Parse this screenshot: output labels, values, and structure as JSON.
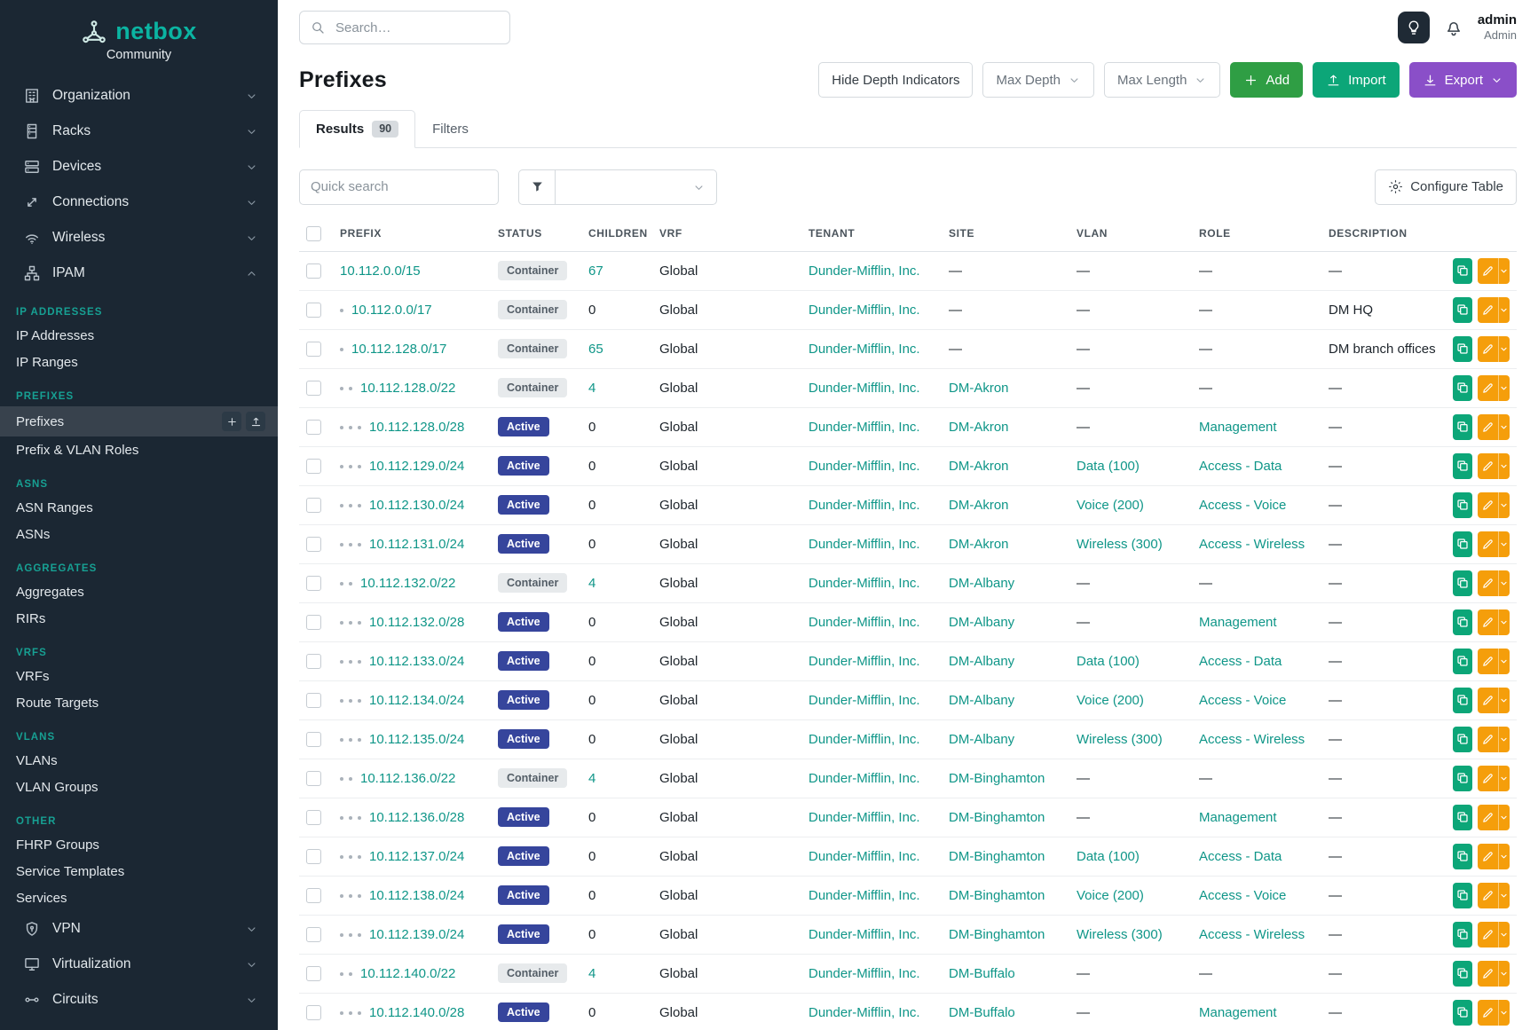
{
  "brand": {
    "name": "netbox",
    "tagline": "Community"
  },
  "topbar": {
    "search_placeholder": "Search…",
    "user_name": "admin",
    "user_role": "Admin"
  },
  "sidebar": {
    "top_items": [
      {
        "label": "Organization",
        "icon": "organization-icon"
      },
      {
        "label": "Racks",
        "icon": "racks-icon"
      },
      {
        "label": "Devices",
        "icon": "devices-icon"
      },
      {
        "label": "Connections",
        "icon": "connections-icon"
      },
      {
        "label": "Wireless",
        "icon": "wireless-icon"
      },
      {
        "label": "IPAM",
        "icon": "ipam-icon",
        "expanded": true
      }
    ],
    "sections": [
      {
        "heading": "IP ADDRESSES",
        "items": [
          {
            "label": "IP Addresses"
          },
          {
            "label": "IP Ranges"
          }
        ]
      },
      {
        "heading": "PREFIXES",
        "items": [
          {
            "label": "Prefixes",
            "active": true
          },
          {
            "label": "Prefix & VLAN Roles"
          }
        ]
      },
      {
        "heading": "ASNS",
        "items": [
          {
            "label": "ASN Ranges"
          },
          {
            "label": "ASNs"
          }
        ]
      },
      {
        "heading": "AGGREGATES",
        "items": [
          {
            "label": "Aggregates"
          },
          {
            "label": "RIRs"
          }
        ]
      },
      {
        "heading": "VRFS",
        "items": [
          {
            "label": "VRFs"
          },
          {
            "label": "Route Targets"
          }
        ]
      },
      {
        "heading": "VLANS",
        "items": [
          {
            "label": "VLANs"
          },
          {
            "label": "VLAN Groups"
          }
        ]
      },
      {
        "heading": "OTHER",
        "items": [
          {
            "label": "FHRP Groups"
          },
          {
            "label": "Service Templates"
          },
          {
            "label": "Services"
          }
        ]
      }
    ],
    "bottom_items": [
      {
        "label": "VPN",
        "icon": "vpn-icon"
      },
      {
        "label": "Virtualization",
        "icon": "virtualization-icon"
      },
      {
        "label": "Circuits",
        "icon": "circuits-icon"
      }
    ]
  },
  "page": {
    "title": "Prefixes",
    "toolbar": {
      "hide_depth": "Hide Depth Indicators",
      "max_depth": "Max Depth",
      "max_length": "Max Length",
      "add": "Add",
      "import": "Import",
      "export": "Export"
    },
    "tabs": [
      {
        "label": "Results",
        "badge": "90"
      },
      {
        "label": "Filters"
      }
    ],
    "quick_search_placeholder": "Quick search",
    "configure_table": "Configure Table"
  },
  "table": {
    "columns": [
      "PREFIX",
      "STATUS",
      "CHILDREN",
      "VRF",
      "TENANT",
      "SITE",
      "VLAN",
      "ROLE",
      "DESCRIPTION"
    ],
    "empty": "—",
    "rows": [
      {
        "depth": 0,
        "prefix": "10.112.0.0/15",
        "status": "Container",
        "variant": "container",
        "children": "67",
        "children_link": true,
        "vrf": "Global",
        "tenant": "Dunder-Mifflin, Inc.",
        "site": "",
        "vlan": "",
        "role": "",
        "description": ""
      },
      {
        "depth": 1,
        "prefix": "10.112.0.0/17",
        "status": "Container",
        "variant": "container",
        "children": "0",
        "children_link": false,
        "vrf": "Global",
        "tenant": "Dunder-Mifflin, Inc.",
        "site": "",
        "vlan": "",
        "role": "",
        "description": "DM HQ"
      },
      {
        "depth": 1,
        "prefix": "10.112.128.0/17",
        "status": "Container",
        "variant": "container",
        "children": "65",
        "children_link": true,
        "vrf": "Global",
        "tenant": "Dunder-Mifflin, Inc.",
        "site": "",
        "vlan": "",
        "role": "",
        "description": "DM branch offices"
      },
      {
        "depth": 2,
        "prefix": "10.112.128.0/22",
        "status": "Container",
        "variant": "container",
        "children": "4",
        "children_link": true,
        "vrf": "Global",
        "tenant": "Dunder-Mifflin, Inc.",
        "site": "DM-Akron",
        "vlan": "",
        "role": "",
        "description": ""
      },
      {
        "depth": 3,
        "prefix": "10.112.128.0/28",
        "status": "Active",
        "variant": "active",
        "children": "0",
        "children_link": false,
        "vrf": "Global",
        "tenant": "Dunder-Mifflin, Inc.",
        "site": "DM-Akron",
        "vlan": "",
        "role": "Management",
        "description": ""
      },
      {
        "depth": 3,
        "prefix": "10.112.129.0/24",
        "status": "Active",
        "variant": "active",
        "children": "0",
        "children_link": false,
        "vrf": "Global",
        "tenant": "Dunder-Mifflin, Inc.",
        "site": "DM-Akron",
        "vlan": "Data (100)",
        "role": "Access - Data",
        "description": ""
      },
      {
        "depth": 3,
        "prefix": "10.112.130.0/24",
        "status": "Active",
        "variant": "active",
        "children": "0",
        "children_link": false,
        "vrf": "Global",
        "tenant": "Dunder-Mifflin, Inc.",
        "site": "DM-Akron",
        "vlan": "Voice (200)",
        "role": "Access - Voice",
        "description": ""
      },
      {
        "depth": 3,
        "prefix": "10.112.131.0/24",
        "status": "Active",
        "variant": "active",
        "children": "0",
        "children_link": false,
        "vrf": "Global",
        "tenant": "Dunder-Mifflin, Inc.",
        "site": "DM-Akron",
        "vlan": "Wireless (300)",
        "role": "Access - Wireless",
        "description": ""
      },
      {
        "depth": 2,
        "prefix": "10.112.132.0/22",
        "status": "Container",
        "variant": "container",
        "children": "4",
        "children_link": true,
        "vrf": "Global",
        "tenant": "Dunder-Mifflin, Inc.",
        "site": "DM-Albany",
        "vlan": "",
        "role": "",
        "description": ""
      },
      {
        "depth": 3,
        "prefix": "10.112.132.0/28",
        "status": "Active",
        "variant": "active",
        "children": "0",
        "children_link": false,
        "vrf": "Global",
        "tenant": "Dunder-Mifflin, Inc.",
        "site": "DM-Albany",
        "vlan": "",
        "role": "Management",
        "description": ""
      },
      {
        "depth": 3,
        "prefix": "10.112.133.0/24",
        "status": "Active",
        "variant": "active",
        "children": "0",
        "children_link": false,
        "vrf": "Global",
        "tenant": "Dunder-Mifflin, Inc.",
        "site": "DM-Albany",
        "vlan": "Data (100)",
        "role": "Access - Data",
        "description": ""
      },
      {
        "depth": 3,
        "prefix": "10.112.134.0/24",
        "status": "Active",
        "variant": "active",
        "children": "0",
        "children_link": false,
        "vrf": "Global",
        "tenant": "Dunder-Mifflin, Inc.",
        "site": "DM-Albany",
        "vlan": "Voice (200)",
        "role": "Access - Voice",
        "description": ""
      },
      {
        "depth": 3,
        "prefix": "10.112.135.0/24",
        "status": "Active",
        "variant": "active",
        "children": "0",
        "children_link": false,
        "vrf": "Global",
        "tenant": "Dunder-Mifflin, Inc.",
        "site": "DM-Albany",
        "vlan": "Wireless (300)",
        "role": "Access - Wireless",
        "description": ""
      },
      {
        "depth": 2,
        "prefix": "10.112.136.0/22",
        "status": "Container",
        "variant": "container",
        "children": "4",
        "children_link": true,
        "vrf": "Global",
        "tenant": "Dunder-Mifflin, Inc.",
        "site": "DM-Binghamton",
        "vlan": "",
        "role": "",
        "description": ""
      },
      {
        "depth": 3,
        "prefix": "10.112.136.0/28",
        "status": "Active",
        "variant": "active",
        "children": "0",
        "children_link": false,
        "vrf": "Global",
        "tenant": "Dunder-Mifflin, Inc.",
        "site": "DM-Binghamton",
        "vlan": "",
        "role": "Management",
        "description": ""
      },
      {
        "depth": 3,
        "prefix": "10.112.137.0/24",
        "status": "Active",
        "variant": "active",
        "children": "0",
        "children_link": false,
        "vrf": "Global",
        "tenant": "Dunder-Mifflin, Inc.",
        "site": "DM-Binghamton",
        "vlan": "Data (100)",
        "role": "Access - Data",
        "description": ""
      },
      {
        "depth": 3,
        "prefix": "10.112.138.0/24",
        "status": "Active",
        "variant": "active",
        "children": "0",
        "children_link": false,
        "vrf": "Global",
        "tenant": "Dunder-Mifflin, Inc.",
        "site": "DM-Binghamton",
        "vlan": "Voice (200)",
        "role": "Access - Voice",
        "description": ""
      },
      {
        "depth": 3,
        "prefix": "10.112.139.0/24",
        "status": "Active",
        "variant": "active",
        "children": "0",
        "children_link": false,
        "vrf": "Global",
        "tenant": "Dunder-Mifflin, Inc.",
        "site": "DM-Binghamton",
        "vlan": "Wireless (300)",
        "role": "Access - Wireless",
        "description": ""
      },
      {
        "depth": 2,
        "prefix": "10.112.140.0/22",
        "status": "Container",
        "variant": "container",
        "children": "4",
        "children_link": true,
        "vrf": "Global",
        "tenant": "Dunder-Mifflin, Inc.",
        "site": "DM-Buffalo",
        "vlan": "",
        "role": "",
        "description": ""
      },
      {
        "depth": 3,
        "prefix": "10.112.140.0/28",
        "status": "Active",
        "variant": "active",
        "children": "0",
        "children_link": false,
        "vrf": "Global",
        "tenant": "Dunder-Mifflin, Inc.",
        "site": "DM-Buffalo",
        "vlan": "",
        "role": "Management",
        "description": ""
      }
    ]
  }
}
